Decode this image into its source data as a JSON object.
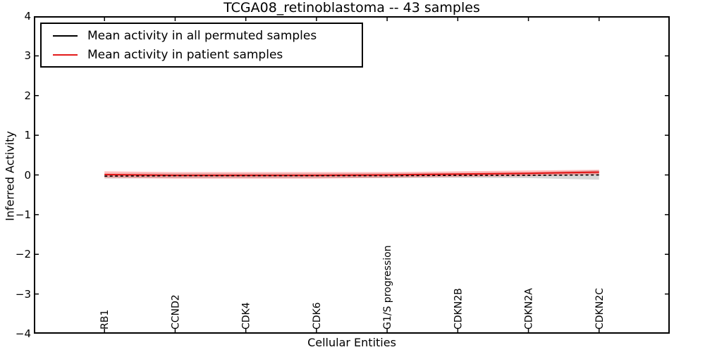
{
  "axes": {
    "xlabel": "Cellular Entities",
    "ylabel": "Inferred Activity",
    "ytick_labels": [
      "4",
      "3",
      "2",
      "1",
      "0",
      "−1",
      "−2",
      "−3",
      "−4"
    ]
  },
  "legend": {
    "items": [
      {
        "key": "permuted",
        "label": "Mean activity in all permuted samples",
        "color": "#000000"
      },
      {
        "key": "patient",
        "label": "Mean activity in patient samples",
        "color": "#e31a1a"
      }
    ]
  },
  "chart_data": {
    "type": "line",
    "title": "TCGA08_retinoblastoma -- 43 samples",
    "xlabel": "Cellular Entities",
    "ylabel": "Inferred Activity",
    "ylim": [
      -4,
      4
    ],
    "yticks": [
      4,
      3,
      2,
      1,
      0,
      -1,
      -2,
      -3,
      -4
    ],
    "grid": false,
    "legend_position": "upper left",
    "categories": [
      "RB1",
      "CCND2",
      "CDK4",
      "CDK6",
      "G1/S progression",
      "CDKN2B",
      "CDKN2A",
      "CDKN2C"
    ],
    "series": [
      {
        "key": "permuted",
        "name": "Mean activity in all permuted samples",
        "color": "#000000",
        "line_style": "dashed",
        "values": [
          -0.03,
          -0.02,
          -0.02,
          -0.02,
          -0.02,
          -0.01,
          -0.01,
          0.0
        ],
        "std": [
          0.06,
          0.06,
          0.06,
          0.06,
          0.06,
          0.06,
          0.07,
          0.12
        ],
        "band_color": "rgba(130,130,130,0.32)"
      },
      {
        "key": "patient",
        "name": "Mean activity in patient samples",
        "color": "#e31a1a",
        "line_style": "solid",
        "values": [
          0.01,
          -0.01,
          -0.01,
          -0.01,
          0.0,
          0.02,
          0.04,
          0.07
        ],
        "std": [
          0.08,
          0.08,
          0.08,
          0.08,
          0.07,
          0.07,
          0.07,
          0.06
        ],
        "band_color": "rgba(255,70,70,0.35)"
      }
    ]
  }
}
